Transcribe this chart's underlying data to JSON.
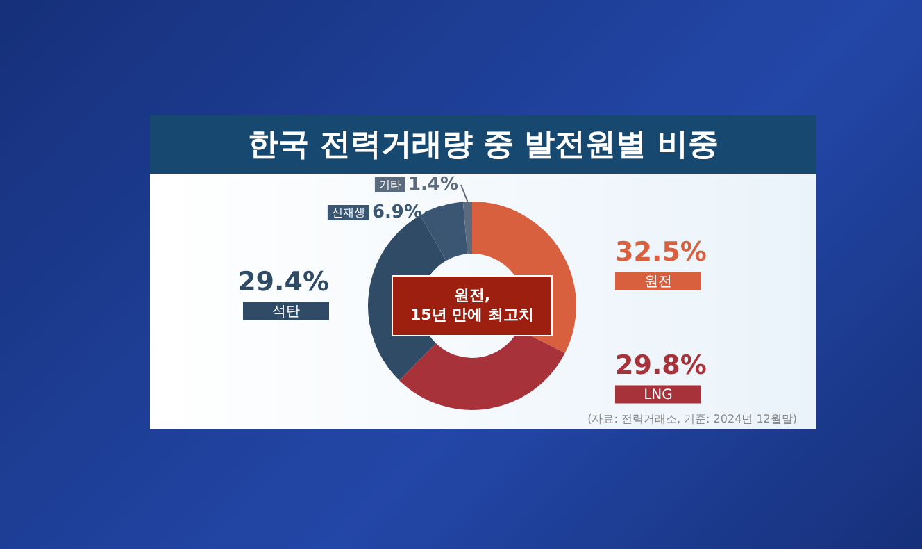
{
  "chart_data": {
    "type": "donut",
    "title": "한국 전력거래량 중 발전원별 비중",
    "categories": [
      "원전",
      "LNG",
      "석탄",
      "신재생",
      "기타"
    ],
    "values": [
      32.5,
      29.8,
      29.4,
      6.9,
      1.4
    ],
    "value_labels": [
      "32.5%",
      "29.8%",
      "29.4%",
      "6.9%",
      "1.4%"
    ],
    "colors": [
      "#d9603f",
      "#a8323a",
      "#2f4b66",
      "#3a5673",
      "#5b6b7d"
    ],
    "annotations": [
      "원전,\n15년 만에 최고치",
      "(자료: 전력거래소, 기준: 2024년 12월말)"
    ],
    "legend": false
  }
}
